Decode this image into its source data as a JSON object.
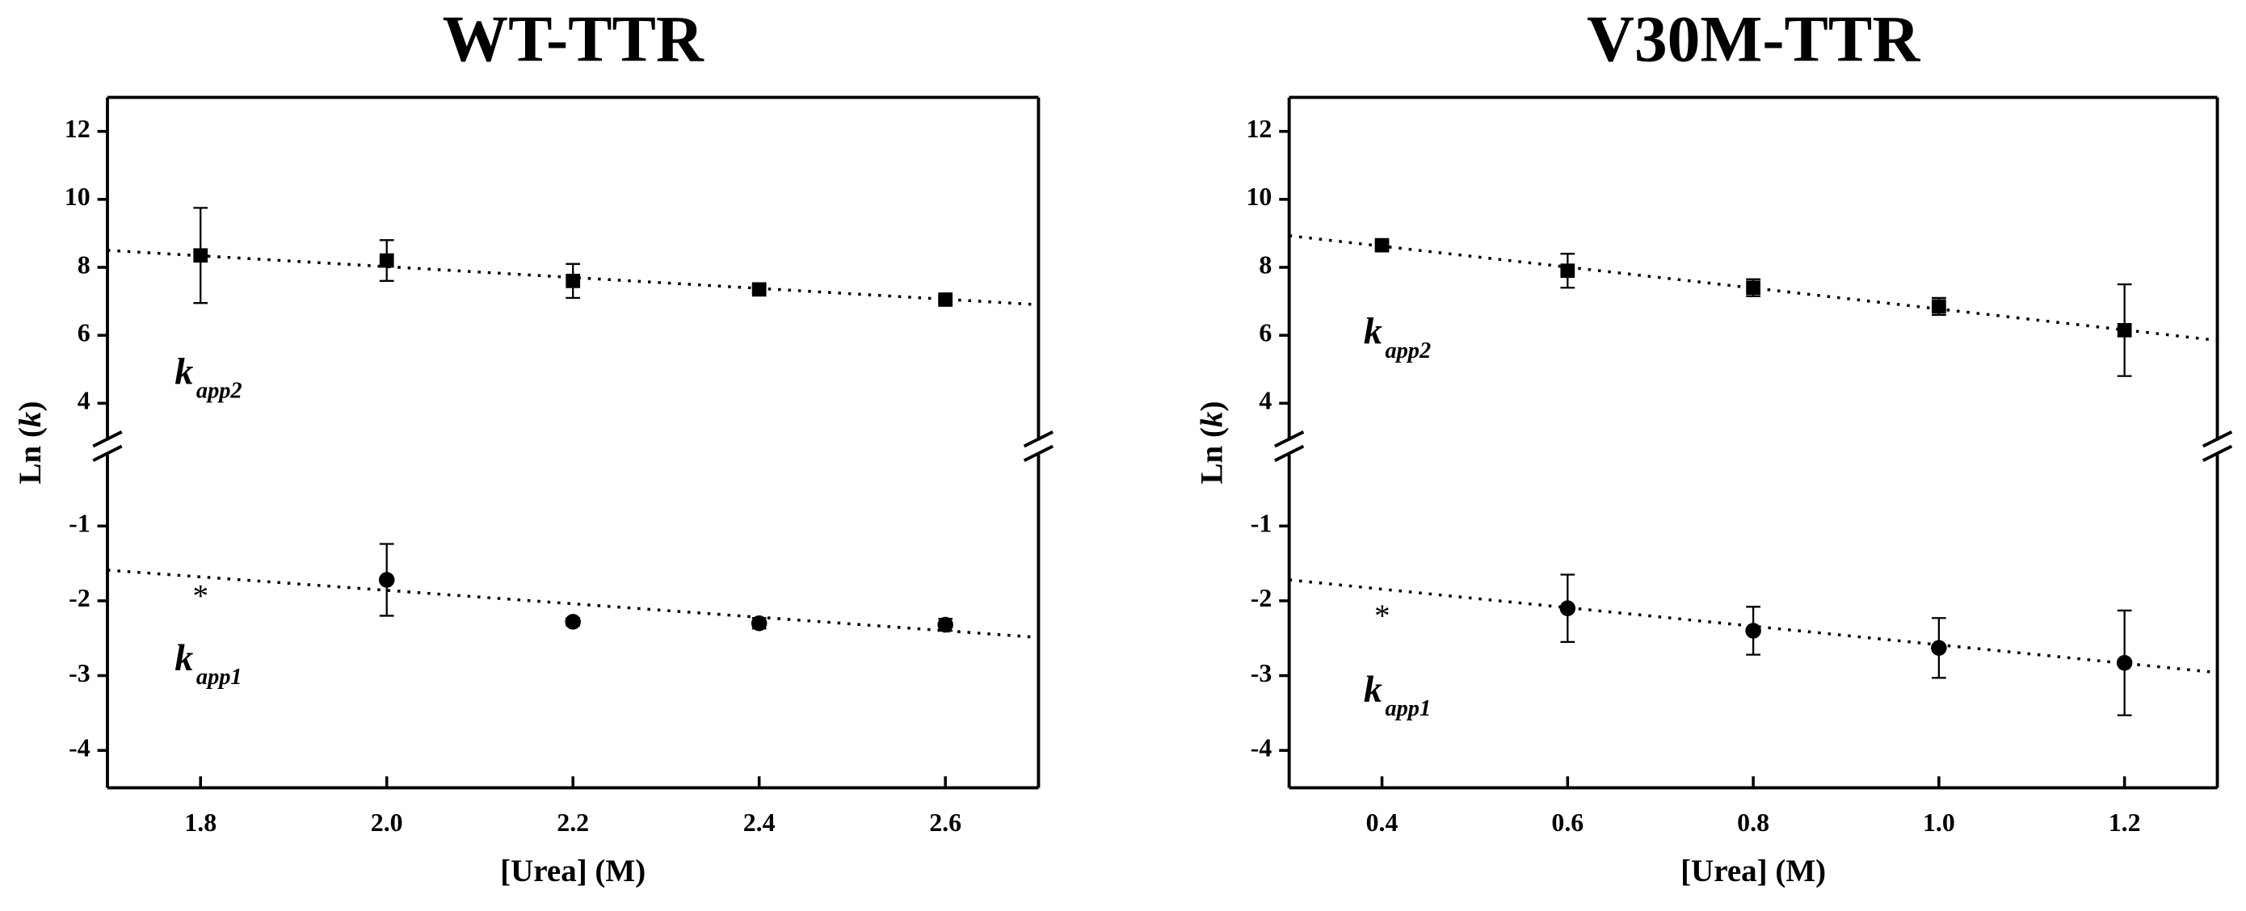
{
  "chart_data": [
    {
      "type": "scatter",
      "title": "WT-TTR",
      "xlabel": "[Urea] (M)",
      "ylabel": [
        "Ln (",
        "k",
        ")"
      ],
      "xlim": [
        1.7,
        2.7
      ],
      "xticks": [
        1.8,
        {
          "value": 2,
          "label": "2.0"
        },
        2.2,
        2.4,
        2.6
      ],
      "ylim": [
        -4.5,
        13
      ],
      "ybreak": [
        0,
        2.8
      ],
      "yticks": [
        -4,
        -3,
        -2,
        -1,
        4,
        6,
        8,
        10,
        12
      ],
      "series": [
        {
          "label": "k",
          "label_sub": "app2",
          "marker": "square",
          "color": "#000000",
          "x": [
            1.8,
            2.0,
            2.2,
            2.4,
            2.6
          ],
          "values": [
            8.35,
            8.2,
            7.6,
            7.35,
            7.05
          ],
          "errors": [
            1.4,
            0.6,
            0.5,
            0.1,
            0.1
          ],
          "fit": {
            "x": [
              1.7,
              2.7
            ],
            "y": [
              8.5,
              6.9
            ]
          }
        },
        {
          "label": "k",
          "label_sub": "app1",
          "marker": "circle",
          "color": "#000000",
          "x": [
            1.8,
            2.0,
            2.2,
            2.4,
            2.6
          ],
          "values": [
            null,
            -1.72,
            -2.28,
            -2.3,
            -2.32
          ],
          "errors": [
            null,
            0.48,
            0.05,
            0.07,
            0.08
          ],
          "fit": {
            "x": [
              1.7,
              2.7
            ],
            "y": [
              -1.59,
              -2.49
            ]
          },
          "note": "*"
        }
      ]
    },
    {
      "type": "scatter",
      "title": "V30M-TTR",
      "xlabel": "[Urea] (M)",
      "ylabel": [
        "Ln (",
        "k",
        ")"
      ],
      "xlim": [
        0.3,
        1.3
      ],
      "xticks": [
        0.4,
        0.6,
        0.8,
        {
          "value": 1,
          "label": "1.0"
        },
        1.2
      ],
      "ylim": [
        -4.5,
        13
      ],
      "ybreak": [
        0,
        2.8
      ],
      "yticks": [
        -4,
        -3,
        -2,
        -1,
        4,
        6,
        8,
        10,
        12
      ],
      "series": [
        {
          "label": "k",
          "label_sub": "app2",
          "marker": "square",
          "color": "#000000",
          "x": [
            0.4,
            0.6,
            0.8,
            1.0,
            1.2
          ],
          "values": [
            8.65,
            7.9,
            7.4,
            6.85,
            6.15
          ],
          "errors": [
            0.1,
            0.5,
            0.25,
            0.25,
            1.35
          ],
          "fit": {
            "x": [
              0.3,
              1.3
            ],
            "y": [
              8.93,
              5.85
            ]
          }
        },
        {
          "label": "k",
          "label_sub": "app1",
          "marker": "circle",
          "color": "#000000",
          "x": [
            0.4,
            0.6,
            0.8,
            1.0,
            1.2
          ],
          "values": [
            null,
            -2.1,
            -2.4,
            -2.63,
            -2.83
          ],
          "errors": [
            null,
            0.45,
            0.32,
            0.4,
            0.7
          ],
          "fit": {
            "x": [
              0.3,
              1.3
            ],
            "y": [
              -1.72,
              -2.96
            ]
          },
          "note": "*"
        }
      ]
    }
  ]
}
